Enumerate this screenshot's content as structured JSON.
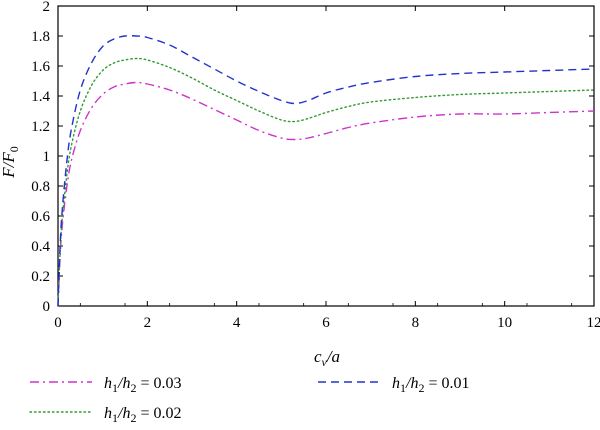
{
  "chart_data": {
    "type": "line",
    "title": "",
    "xlabel": "c_v/a",
    "ylabel": "F/F_0",
    "xlim": [
      0,
      12
    ],
    "ylim": [
      0,
      2
    ],
    "xticks": [
      0,
      2,
      4,
      6,
      8,
      10,
      12
    ],
    "yticks": [
      0,
      0.2,
      0.4,
      0.6,
      0.8,
      1,
      1.2,
      1.4,
      1.6,
      1.8,
      2
    ],
    "grid": false,
    "legend_position": "bottom",
    "series": [
      {
        "name": "h1/h2 = 0.03",
        "color": "#cc33cc",
        "dash": "dash-dot",
        "x": [
          0,
          0.05,
          0.1,
          0.2,
          0.3,
          0.5,
          0.75,
          1.0,
          1.25,
          1.5,
          1.75,
          2.0,
          2.5,
          3.0,
          3.5,
          4.0,
          4.5,
          5.0,
          5.3,
          5.6,
          6.0,
          6.5,
          7.0,
          8.0,
          9.0,
          10.0,
          11.0,
          12.0
        ],
        "y": [
          0,
          0.35,
          0.55,
          0.8,
          0.97,
          1.17,
          1.32,
          1.41,
          1.46,
          1.48,
          1.49,
          1.48,
          1.44,
          1.38,
          1.31,
          1.24,
          1.17,
          1.12,
          1.11,
          1.12,
          1.15,
          1.19,
          1.22,
          1.26,
          1.28,
          1.28,
          1.29,
          1.3
        ]
      },
      {
        "name": "h1/h2 = 0.02",
        "color": "#339933",
        "dash": "dotted",
        "x": [
          0,
          0.05,
          0.1,
          0.2,
          0.3,
          0.5,
          0.75,
          1.0,
          1.25,
          1.5,
          1.75,
          2.0,
          2.5,
          3.0,
          3.5,
          4.0,
          4.5,
          5.0,
          5.3,
          5.6,
          6.0,
          6.5,
          7.0,
          8.0,
          9.0,
          10.0,
          11.0,
          12.0
        ],
        "y": [
          0,
          0.38,
          0.6,
          0.88,
          1.07,
          1.3,
          1.47,
          1.57,
          1.62,
          1.64,
          1.65,
          1.64,
          1.59,
          1.52,
          1.44,
          1.37,
          1.3,
          1.24,
          1.23,
          1.25,
          1.29,
          1.33,
          1.36,
          1.39,
          1.41,
          1.42,
          1.43,
          1.44
        ]
      },
      {
        "name": "h1/h2 = 0.01",
        "color": "#2233cc",
        "dash": "dashed",
        "x": [
          0,
          0.05,
          0.1,
          0.2,
          0.3,
          0.5,
          0.75,
          1.0,
          1.25,
          1.5,
          1.75,
          2.0,
          2.5,
          3.0,
          3.5,
          4.0,
          4.5,
          5.0,
          5.3,
          5.6,
          6.0,
          6.5,
          7.0,
          8.0,
          9.0,
          10.0,
          11.0,
          12.0
        ],
        "y": [
          0,
          0.42,
          0.66,
          0.97,
          1.18,
          1.44,
          1.62,
          1.73,
          1.78,
          1.8,
          1.8,
          1.79,
          1.74,
          1.66,
          1.58,
          1.5,
          1.43,
          1.37,
          1.35,
          1.37,
          1.42,
          1.46,
          1.49,
          1.53,
          1.55,
          1.56,
          1.57,
          1.58
        ]
      }
    ]
  }
}
